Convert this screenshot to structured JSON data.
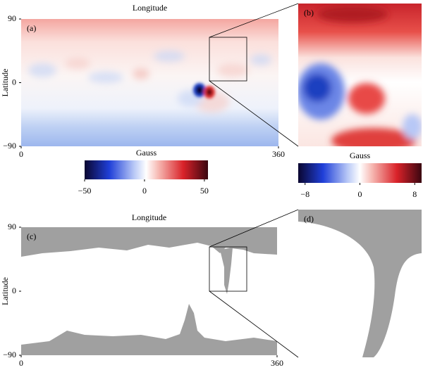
{
  "chart_data": [
    {
      "type": "map",
      "label": "(a)",
      "xlabel": "Longitude",
      "ylabel": "Latitude",
      "xlim": [
        0,
        360
      ],
      "ylim": [
        -90,
        90
      ],
      "xticks": [
        0,
        360
      ],
      "yticks": [
        {
          "value": -90,
          "label": "−90"
        },
        0,
        90
      ],
      "colorbar": {
        "label": "Gauss",
        "lim": [
          -50,
          53
        ],
        "ticks": [
          {
            "value": -50,
            "label": "−50"
          },
          0,
          50
        ]
      }
    },
    {
      "type": "zoom",
      "label": "(b)",
      "colorbar": {
        "label": "Gauss",
        "lim": [
          -9,
          9
        ],
        "ticks": [
          {
            "value": -8,
            "label": "−8"
          },
          0,
          8
        ]
      }
    },
    {
      "type": "map",
      "label": "(c)",
      "xlabel": "Longitude",
      "ylabel": "Latitude",
      "xlim": [
        0,
        360
      ],
      "ylim": [
        -90,
        90
      ],
      "xticks": [
        0,
        360
      ],
      "yticks": [
        {
          "value": -90,
          "label": "−90"
        },
        0,
        90
      ]
    },
    {
      "type": "zoom",
      "label": "(d)"
    }
  ]
}
